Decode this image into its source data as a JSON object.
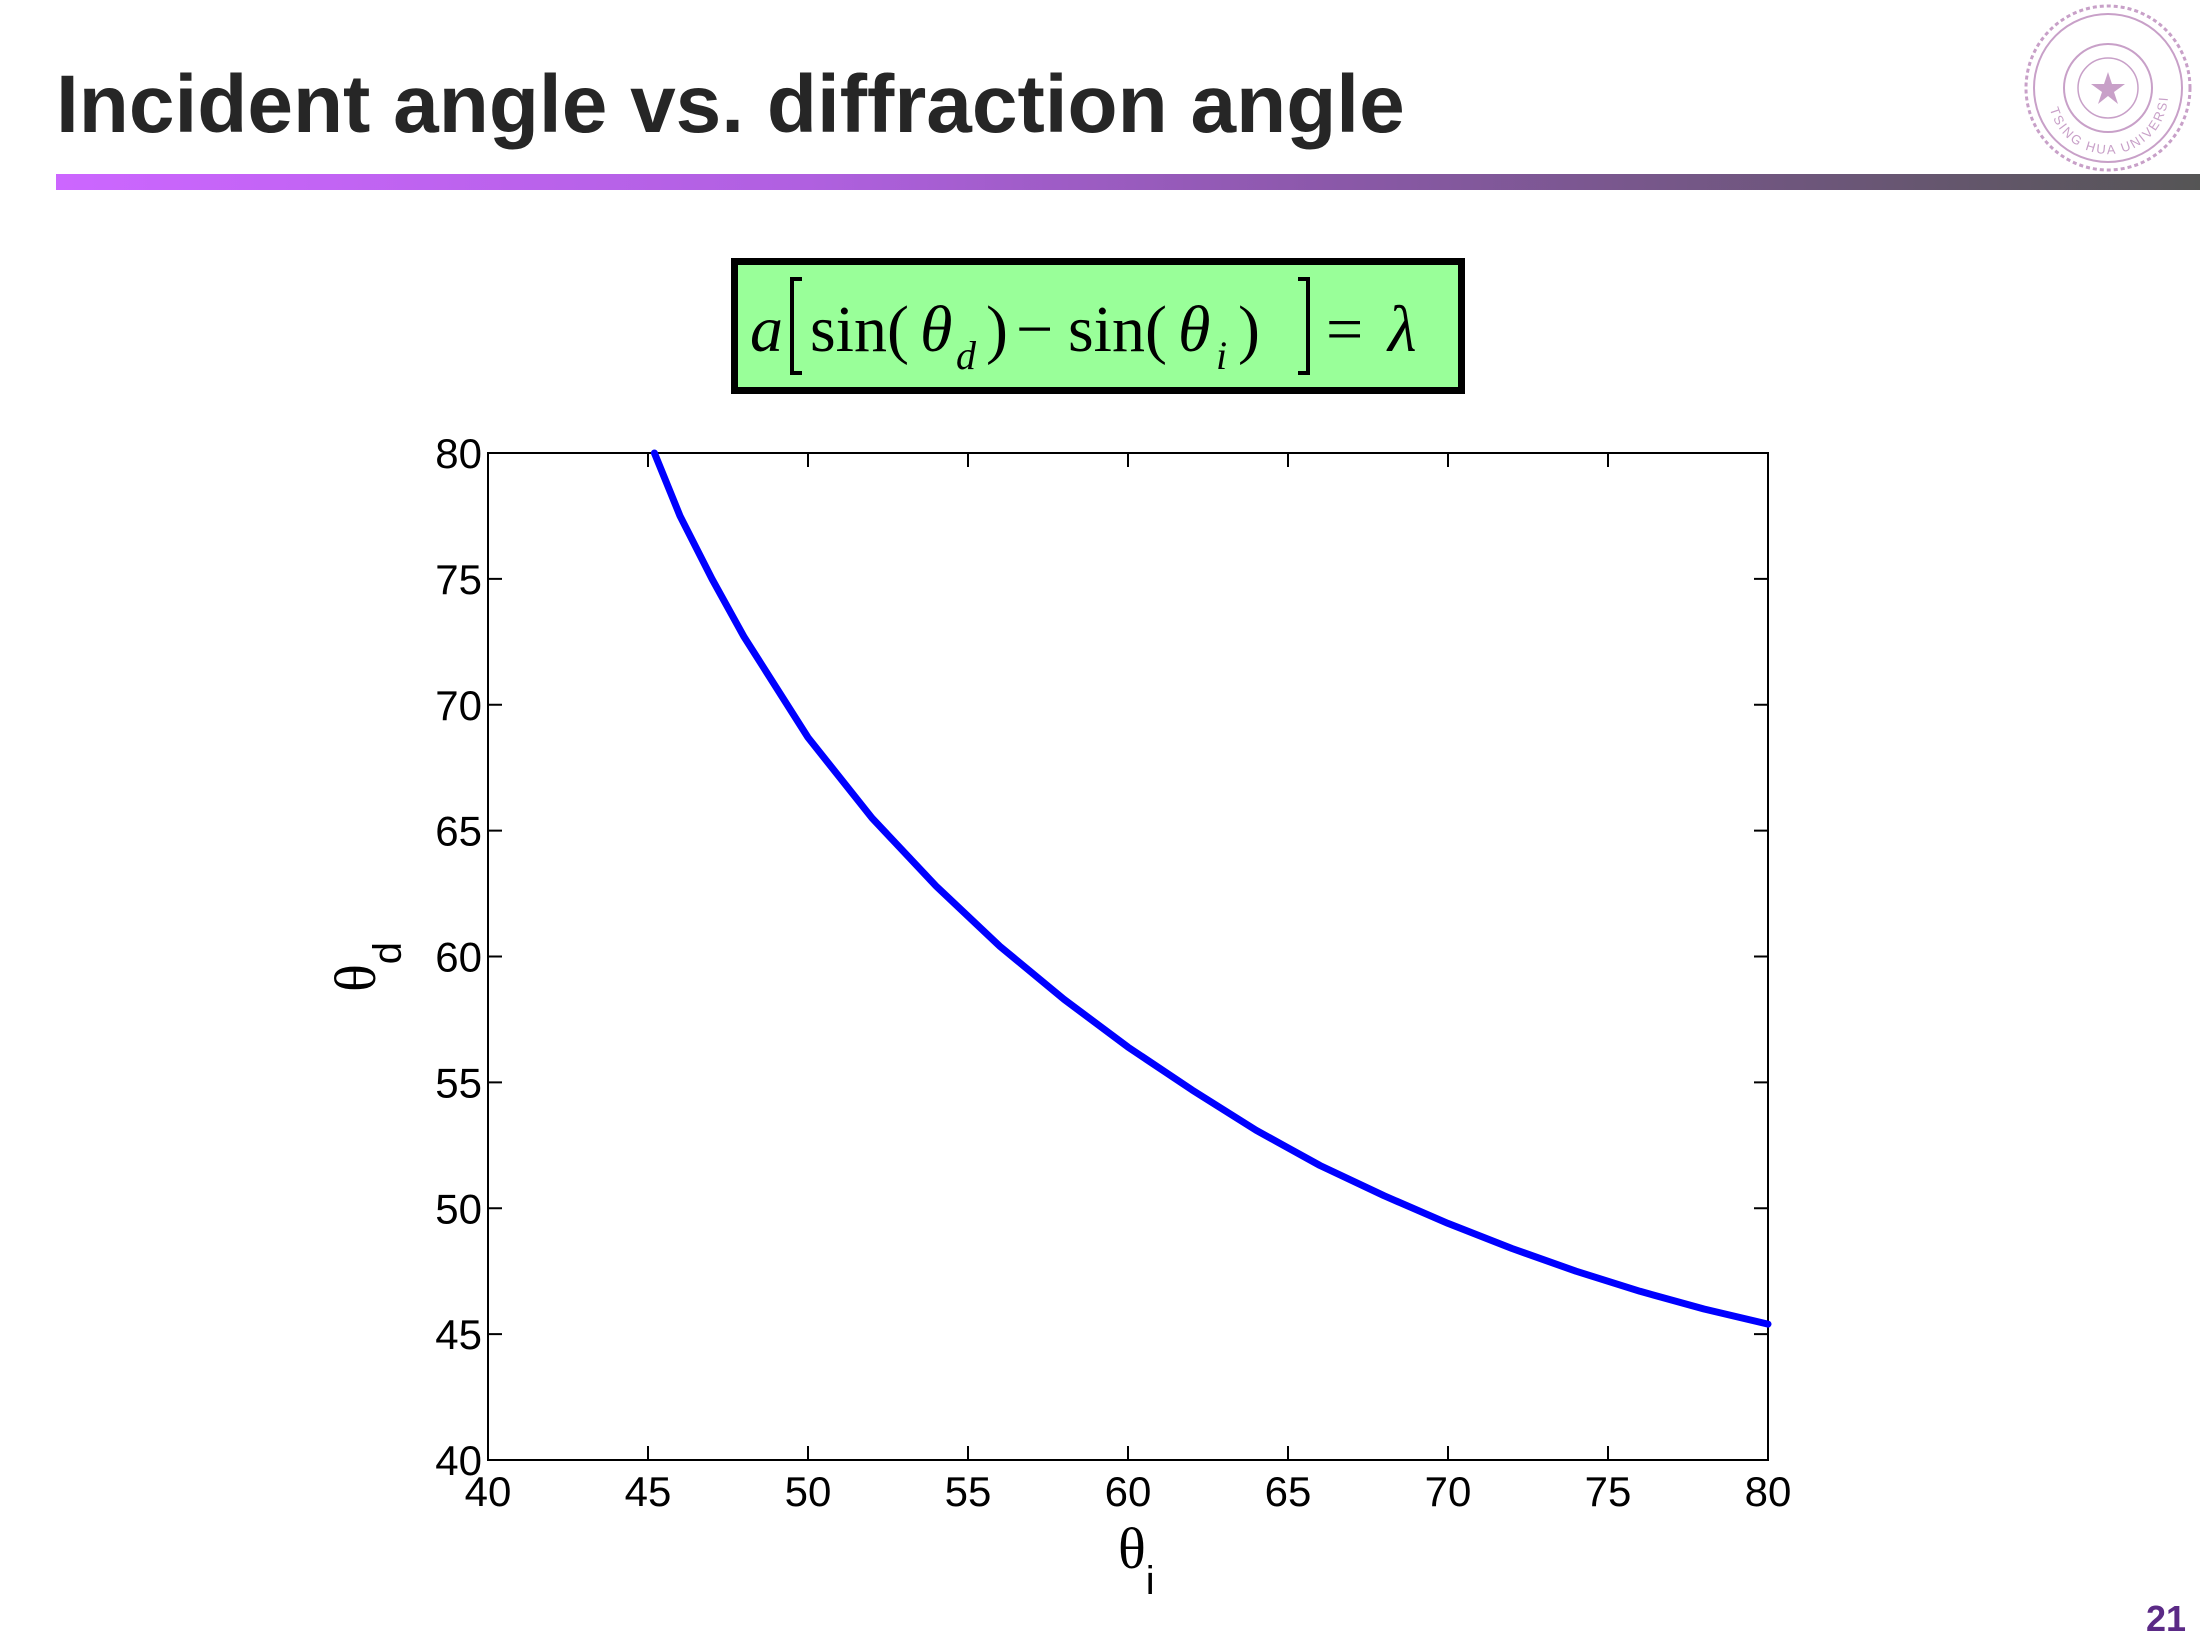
{
  "slide": {
    "title": "Incident angle vs. diffraction angle",
    "page_number": "21",
    "accent_color": "#cc66ff",
    "page_number_color": "#5b2a86"
  },
  "formula": {
    "text": "a[sin(θd) − sin(θi)] = λ",
    "box_color": "#99ff99",
    "parts": {
      "a": "a",
      "sin1": "sin(",
      "theta1": "θ",
      "sub1": "d",
      "close1": ")",
      "minus": "−",
      "sin2": "sin(",
      "theta2": "θ",
      "sub2": "i",
      "close2": ")",
      "equals": "=",
      "lambda": "λ"
    }
  },
  "seal": {
    "icon": "university-seal-icon",
    "text": "TSING HUA UNIVERSITY",
    "color": "#c8a0c8"
  },
  "chart_data": {
    "type": "line",
    "title": "",
    "xlabel": "θi",
    "ylabel": "θd",
    "xlabel_symbol": "θ",
    "xlabel_sub": "i",
    "ylabel_symbol": "θ",
    "ylabel_sub": "d",
    "xlim": [
      40,
      80
    ],
    "ylim": [
      40,
      80
    ],
    "xticks": [
      40,
      45,
      50,
      55,
      60,
      65,
      70,
      75,
      80
    ],
    "yticks": [
      40,
      45,
      50,
      55,
      60,
      65,
      70,
      75,
      80
    ],
    "grid": false,
    "line_color": "#0000ff",
    "series": [
      {
        "x": [
          45.2,
          46,
          47,
          48,
          49,
          50,
          52,
          54,
          56,
          58,
          60,
          62,
          64,
          66,
          68,
          70,
          72,
          74,
          76,
          78,
          80
        ],
        "y": [
          80,
          77.5,
          75.0,
          72.7,
          70.7,
          68.7,
          65.5,
          62.8,
          60.4,
          58.3,
          56.4,
          54.7,
          53.1,
          51.7,
          50.5,
          49.4,
          48.4,
          47.5,
          46.7,
          46.0,
          45.4
        ]
      }
    ]
  }
}
